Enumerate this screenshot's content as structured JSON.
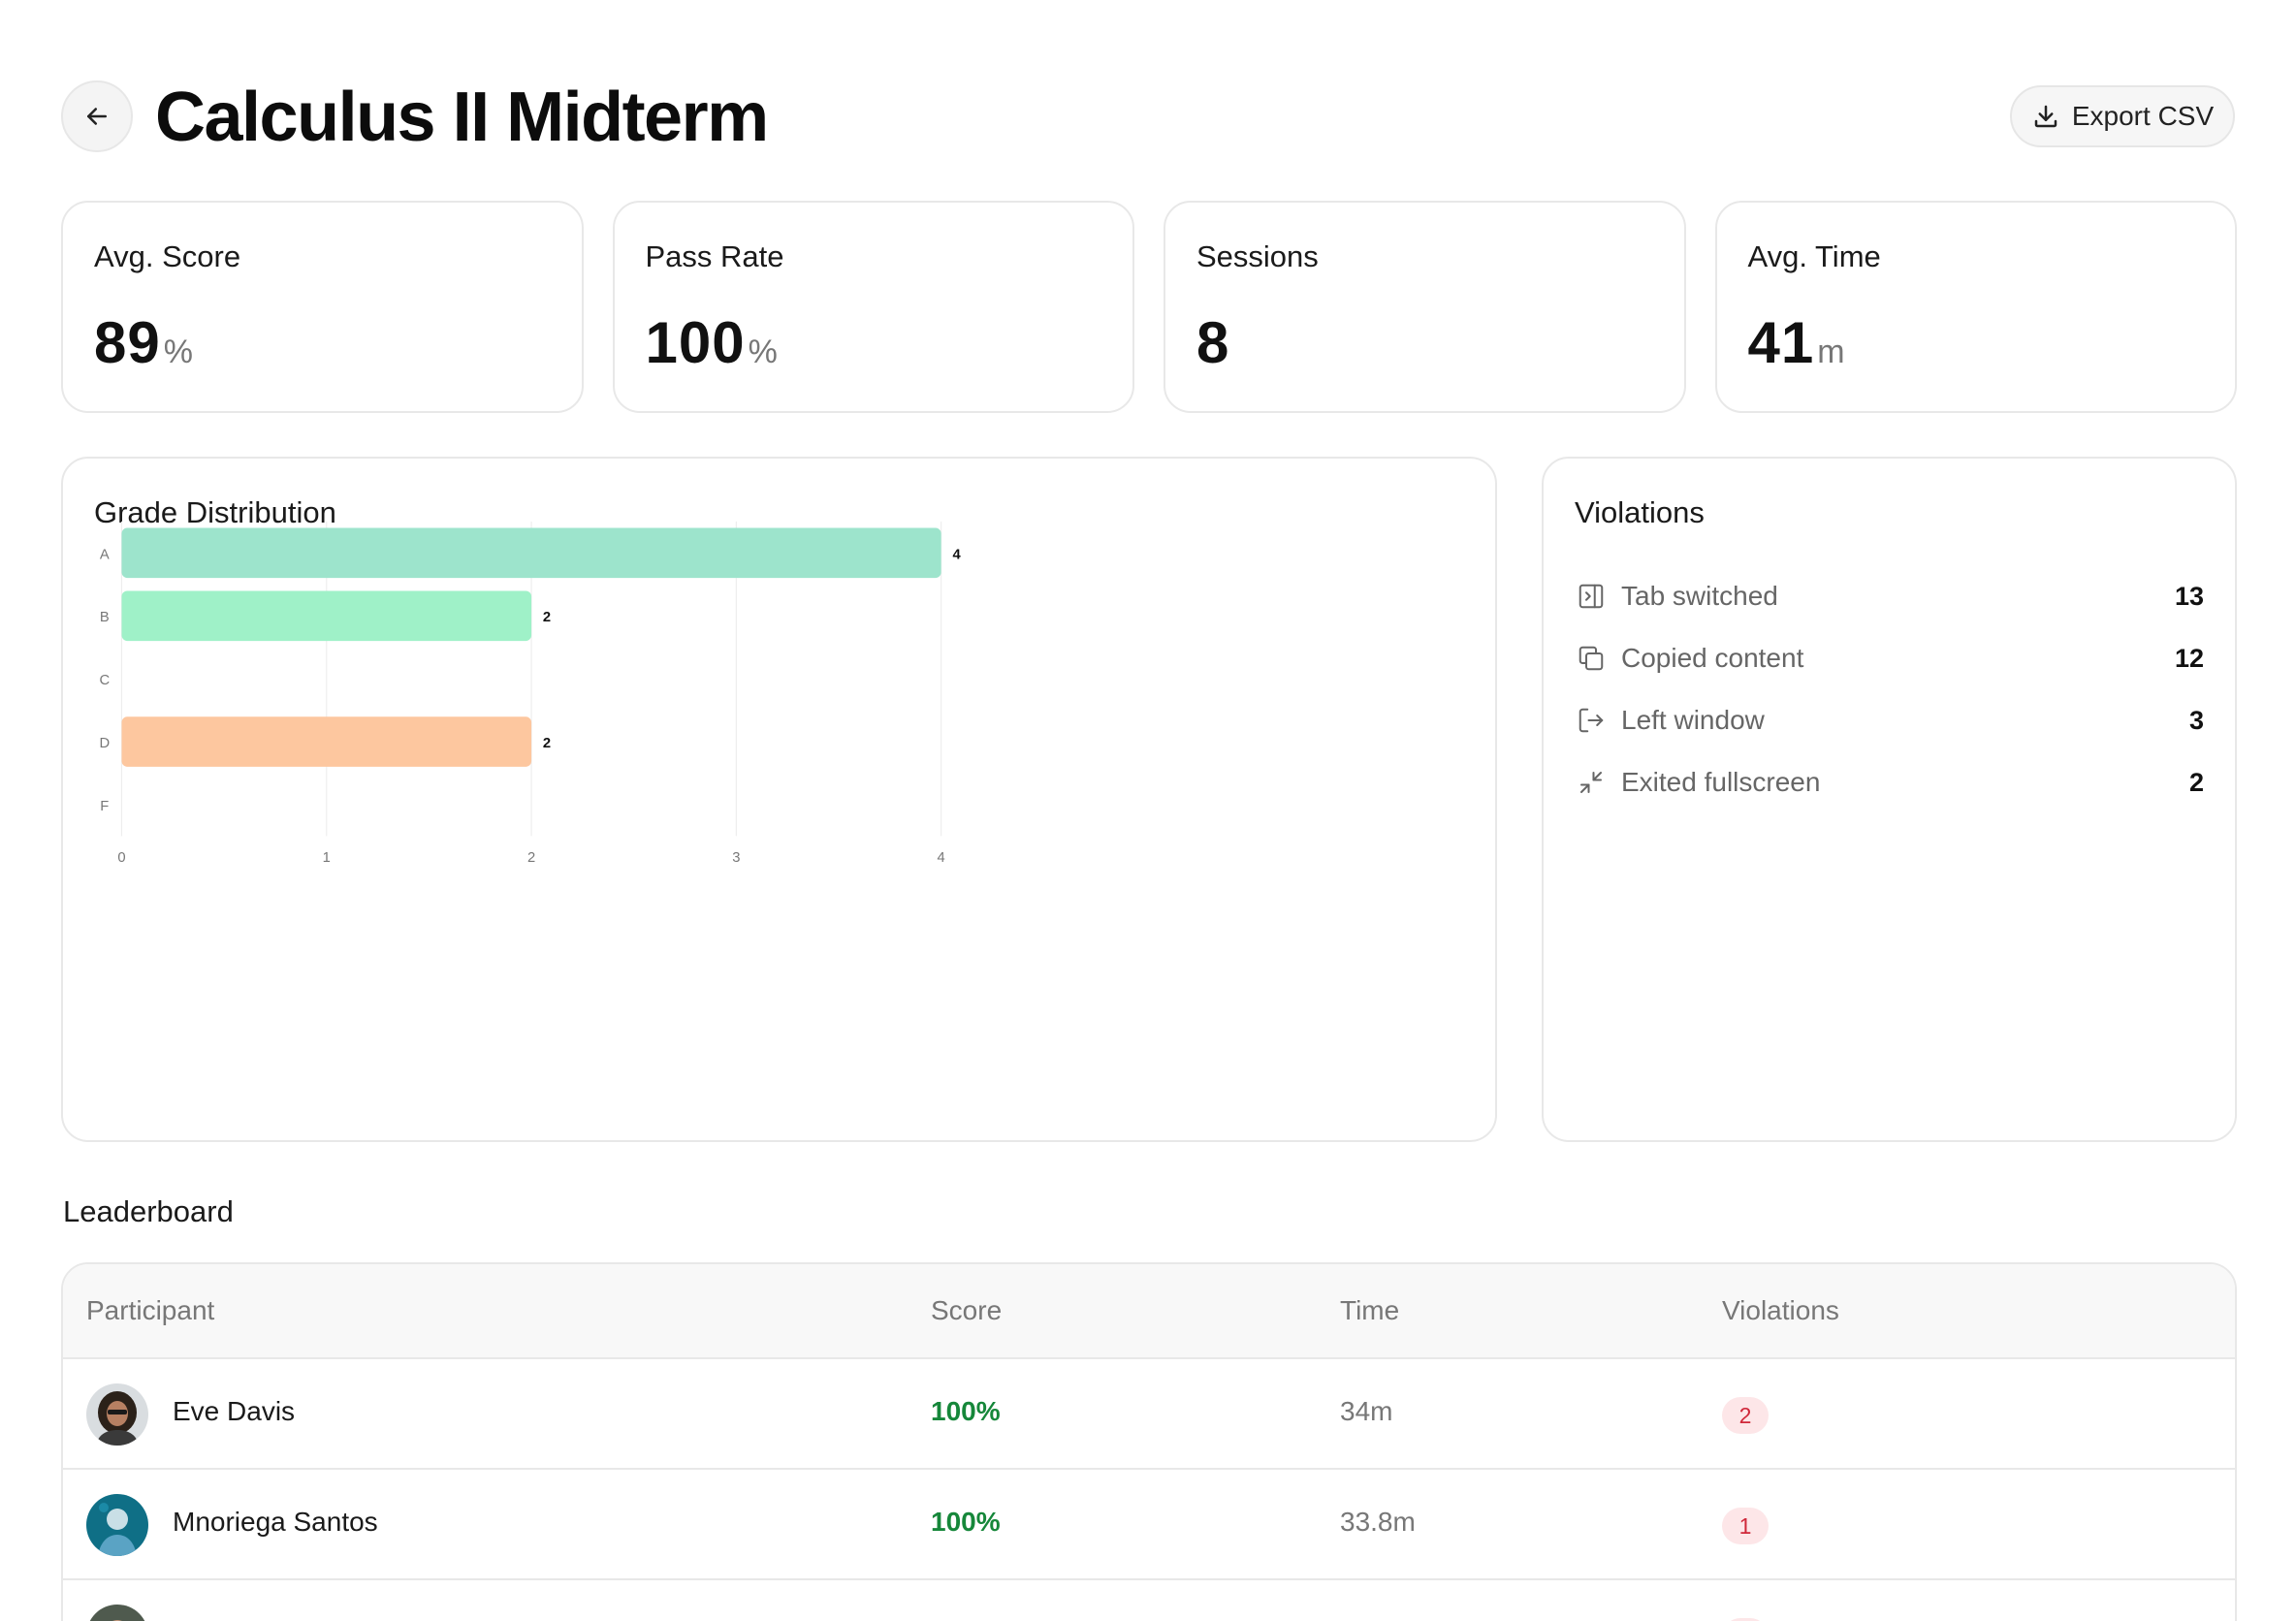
{
  "header": {
    "title": "Calculus II Midterm",
    "back_icon": "arrow-left-icon",
    "export_label": "Export CSV",
    "export_icon": "download-icon"
  },
  "stats": [
    {
      "label": "Avg. Score",
      "value": "89",
      "unit": "%"
    },
    {
      "label": "Pass Rate",
      "value": "100",
      "unit": "%"
    },
    {
      "label": "Sessions",
      "value": "8",
      "unit": ""
    },
    {
      "label": "Avg. Time",
      "value": "41",
      "unit": "m"
    }
  ],
  "grade_distribution": {
    "title": "Grade Distribution"
  },
  "chart_data": {
    "type": "bar",
    "orientation": "horizontal",
    "categories": [
      "A",
      "B",
      "C",
      "D",
      "F"
    ],
    "values": [
      4,
      2,
      0,
      2,
      0
    ],
    "colors": [
      "#98e3c9",
      "#9af0c5",
      "#9af0c5",
      "#fdc49a",
      "#fdc49a"
    ],
    "xticks": [
      "0",
      "1",
      "2",
      "3",
      "4"
    ],
    "xlim": [
      0,
      4
    ],
    "grid": true,
    "data_labels": true
  },
  "violations": {
    "title": "Violations",
    "items": [
      {
        "label": "Tab switched",
        "count": "13",
        "icon": "tab-switch-icon"
      },
      {
        "label": "Copied content",
        "count": "12",
        "icon": "copy-icon"
      },
      {
        "label": "Left window",
        "count": "3",
        "icon": "exit-window-icon"
      },
      {
        "label": "Exited fullscreen",
        "count": "2",
        "icon": "minimize-icon"
      }
    ]
  },
  "leaderboard": {
    "title": "Leaderboard",
    "columns": [
      "Participant",
      "Score",
      "Time",
      "Violations"
    ],
    "rows": [
      {
        "name": "Eve Davis",
        "score": "100%",
        "time": "34m",
        "violations": "2"
      },
      {
        "name": "Mnoriega Santos",
        "score": "100%",
        "time": "33.8m",
        "violations": "1"
      }
    ]
  }
}
